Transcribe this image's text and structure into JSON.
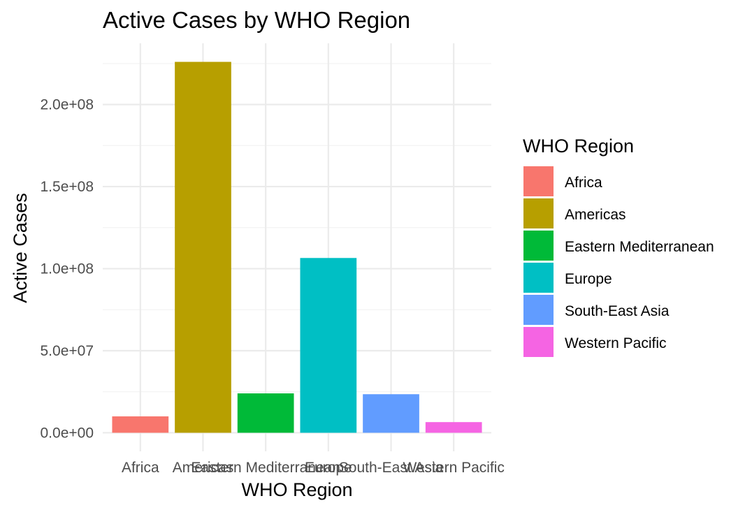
{
  "chart_data": {
    "type": "bar",
    "title": "Active Cases by WHO Region",
    "xlabel": "WHO Region",
    "ylabel": "Active Cases",
    "categories": [
      "Africa",
      "Americas",
      "Eastern Mediterranean",
      "Europe",
      "South-East Asia",
      "Western Pacific"
    ],
    "values": [
      10000000,
      226000000,
      24000000,
      106500000,
      23500000,
      6500000
    ],
    "ylim": [
      -11300000,
      237300000
    ],
    "yticks": [
      0,
      50000000,
      100000000,
      150000000,
      200000000
    ],
    "ytick_labels": [
      "0.0e+00",
      "5.0e+07",
      "1.0e+08",
      "1.5e+08",
      "2.0e+08"
    ],
    "colors": [
      "#F8766D",
      "#B79F00",
      "#00BA38",
      "#00BFC4",
      "#619CFF",
      "#F564E3"
    ],
    "grid": true,
    "legend": {
      "title": "WHO Region",
      "position": "right",
      "entries": [
        "Africa",
        "Americas",
        "Eastern Mediterranean",
        "Europe",
        "South-East Asia",
        "Western Pacific"
      ]
    }
  }
}
